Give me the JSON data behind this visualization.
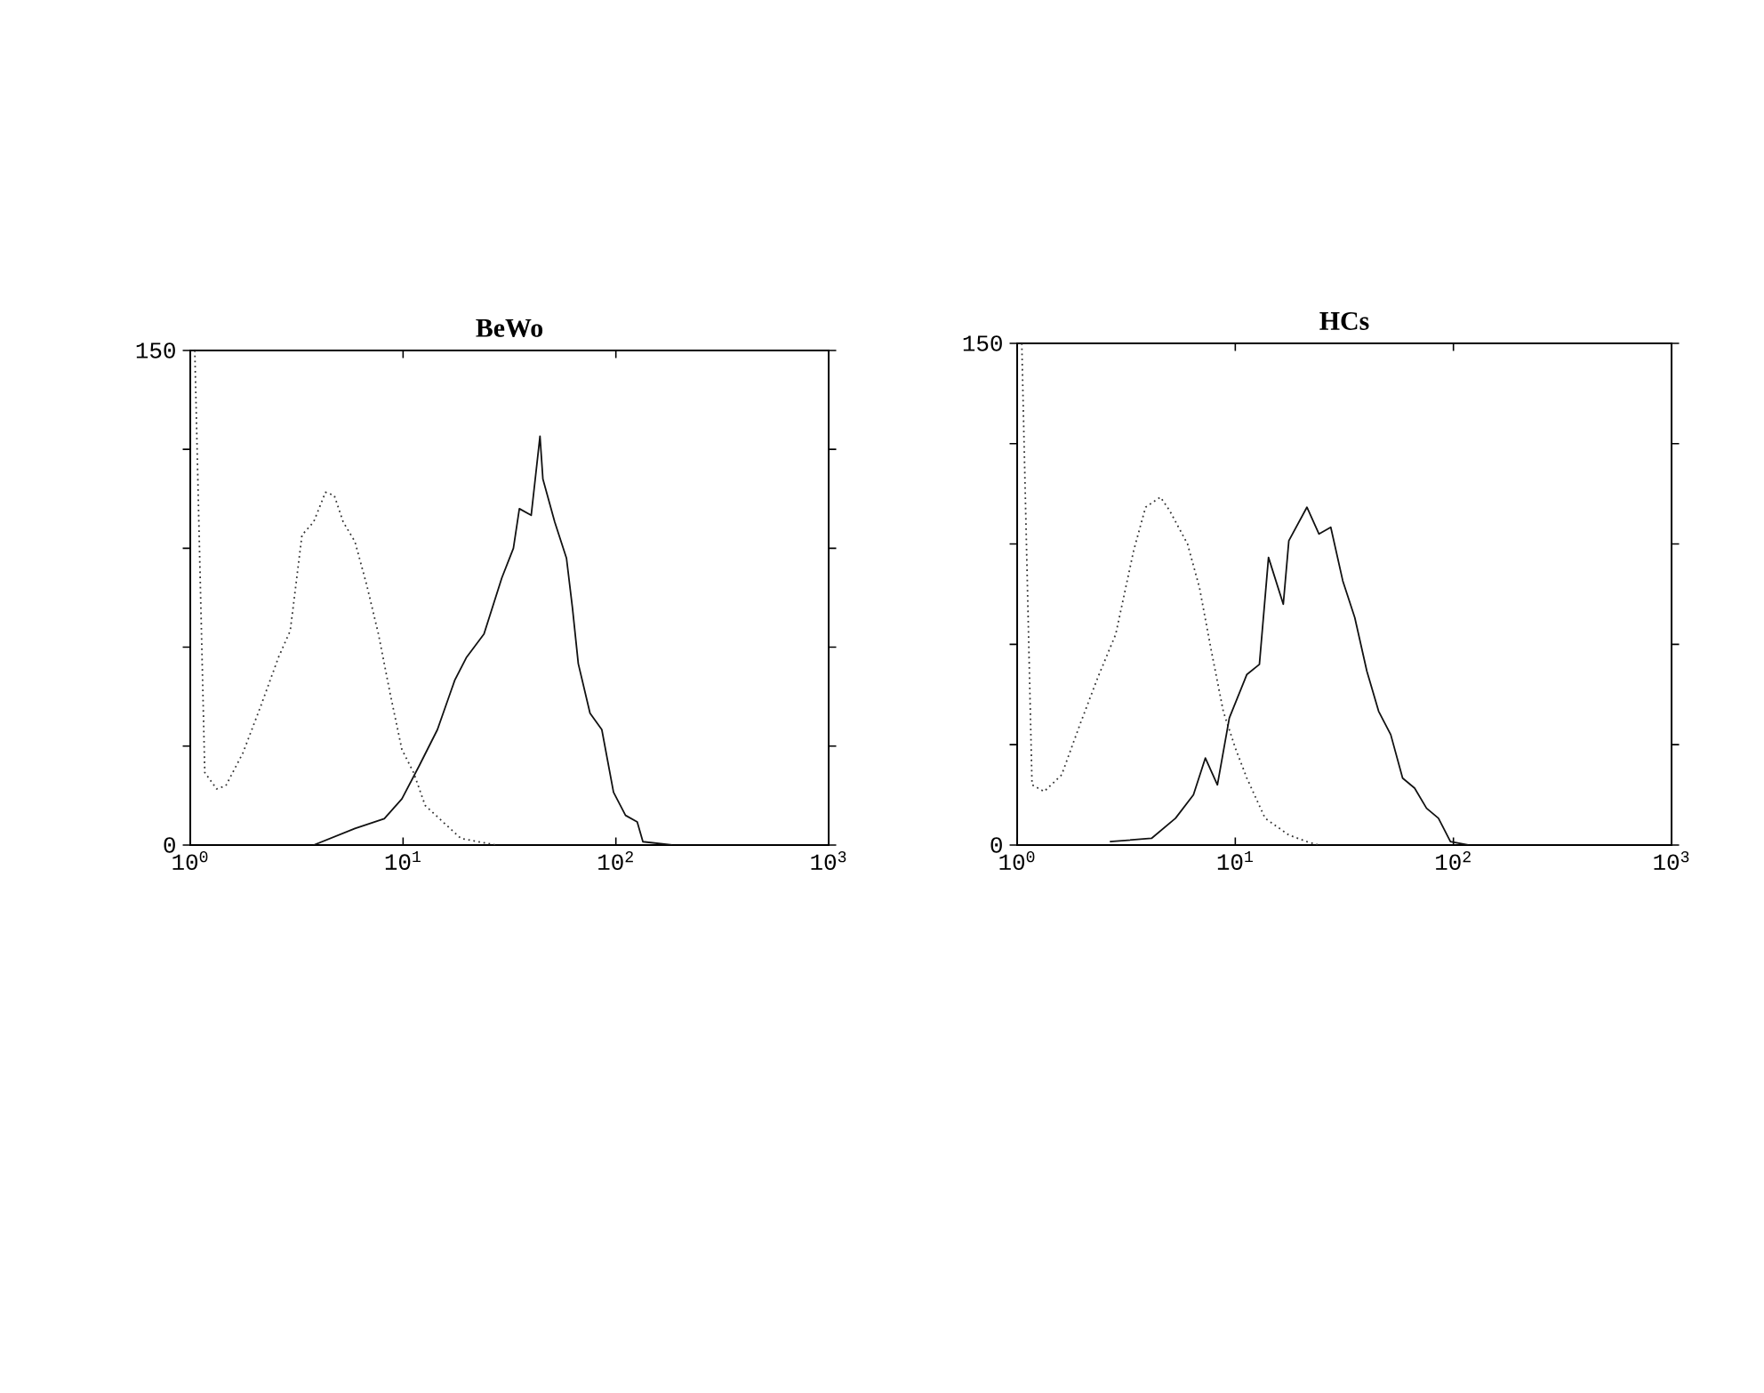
{
  "chart_data": [
    {
      "type": "line",
      "title": "BeWo",
      "log": "x",
      "grid": false,
      "xlim": [
        1,
        1000
      ],
      "ylim": [
        0,
        150
      ],
      "xticks": [
        {
          "value": 1,
          "label": "10$^{0}$"
        },
        {
          "value": 10,
          "label": "10$^{1}$"
        },
        {
          "value": 100,
          "label": "10$^{2}$"
        },
        {
          "value": 1000,
          "label": "10$^{3}$"
        }
      ],
      "yticks": [
        0,
        {
          "value": 30,
          "label": null
        },
        {
          "value": 60,
          "label": null
        },
        {
          "value": 90,
          "label": null
        },
        {
          "value": 120,
          "label": null
        },
        150
      ],
      "series": [
        {
          "color": "#333333",
          "line_style": "dotted",
          "x": [
            1.05,
            1.17,
            1.33,
            1.47,
            1.77,
            2.14,
            2.6,
            2.95,
            3.35,
            3.8,
            4.32,
            4.75,
            5.23,
            5.94,
            6.74,
            7.66,
            8.69,
            9.87,
            11.2,
            12.7,
            15.4,
            18.7,
            22.6,
            27.3
          ],
          "values": [
            150,
            22,
            17,
            18,
            28,
            42,
            57,
            65,
            94,
            98,
            107,
            106,
            98,
            92,
            79,
            64,
            46,
            29,
            22,
            12,
            7,
            2,
            1,
            0
          ]
        },
        {
          "color": "#111111",
          "line_style": "solid",
          "x": [
            3.8,
            5.94,
            8.16,
            9.87,
            11.9,
            14.5,
            17.5,
            19.9,
            24.0,
            29.1,
            33.0,
            35.2,
            40.0,
            44.0,
            45.4,
            51.6,
            58.6,
            62.5,
            66.6,
            75.6,
            85.9,
            97.5,
            111,
            126,
            134,
            184
          ],
          "values": [
            0,
            5,
            8,
            14,
            24,
            35,
            50,
            57,
            64,
            81,
            90,
            102,
            100,
            124,
            111,
            98,
            87,
            72,
            55,
            40,
            35,
            16,
            9,
            7,
            1,
            0
          ]
        }
      ]
    },
    {
      "type": "line",
      "title": "HCs",
      "log": "x",
      "grid": false,
      "xlim": [
        1,
        1000
      ],
      "ylim": [
        0,
        150
      ],
      "xticks": [
        {
          "value": 1,
          "label": "10$^{0}$"
        },
        {
          "value": 10,
          "label": "10$^{1}$"
        },
        {
          "value": 100,
          "label": "10$^{2}$"
        },
        {
          "value": 1000,
          "label": "10$^{3}$"
        }
      ],
      "yticks": [
        0,
        {
          "value": 30,
          "label": null
        },
        {
          "value": 60,
          "label": null
        },
        {
          "value": 90,
          "label": null
        },
        {
          "value": 120,
          "label": null
        },
        150
      ],
      "series": [
        {
          "color": "#333333",
          "line_style": "dotted",
          "x": [
            1.05,
            1.17,
            1.33,
            1.6,
            1.94,
            2.34,
            2.83,
            3.42,
            3.88,
            4.54,
            5.0,
            6.04,
            6.85,
            7.77,
            8.81,
            10.0,
            11.3,
            13.7,
            17.6,
            21.3,
            24.2
          ],
          "values": [
            150,
            18,
            16,
            21,
            36,
            50,
            63,
            88,
            101,
            104,
            100,
            90,
            77,
            58,
            40,
            29,
            20,
            8,
            3,
            1,
            0
          ]
        },
        {
          "color": "#111111",
          "line_style": "solid",
          "x": [
            2.66,
            4.13,
            5.32,
            6.43,
            7.29,
            8.28,
            9.39,
            11.3,
            12.9,
            14.2,
            16.6,
            17.6,
            21.3,
            24.2,
            27.4,
            31.1,
            35.3,
            40.1,
            45.4,
            51.6,
            58.5,
            66.4,
            75.3,
            85.4,
            96.9,
            117
          ],
          "values": [
            1,
            2,
            8,
            15,
            26,
            18,
            38,
            51,
            54,
            86,
            72,
            91,
            101,
            93,
            95,
            79,
            68,
            52,
            40,
            33,
            20,
            17,
            11,
            8,
            1,
            0
          ]
        }
      ]
    }
  ]
}
